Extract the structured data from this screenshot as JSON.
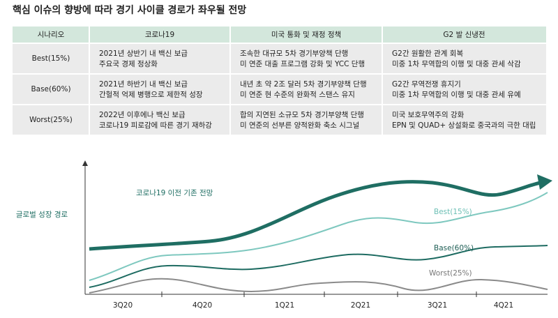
{
  "header": {
    "title": "핵심 이슈의 향방에 따라 경기 사이클 경로가 좌우될 전망"
  },
  "table": {
    "headers": [
      "시나리오",
      "코로나19",
      "미국 통화 및 재정 정책",
      "G2 발 신냉전"
    ],
    "rows": [
      [
        "Best(15%)",
        [
          "2021년 상반기 내 백신 보급",
          "주요국 경제 정상화"
        ],
        [
          "조속한 대규모 5차 경기부양책 단행",
          "미 연준 대출 프로그램 강화 및 YCC 단행"
        ],
        [
          "G2간 원활한 관계 회복",
          "미중 1차 무역합의 이행 및 대중 관세 삭감"
        ]
      ],
      [
        "Base(60%)",
        [
          "2021년 하반기 내 백신 보급",
          "간헐적 억제 병행으로 제한적 성장"
        ],
        [
          "내년 초 약 2조 달러 5차 경기부양책 단행",
          "미 연준 현 수준의 완화적 스탠스 유지"
        ],
        [
          "G2간 무역전쟁 휴지기",
          "미중 1차 무역합의 이행 및 대중 관세 유예"
        ]
      ],
      [
        "Worst(25%)",
        [
          "2022년 이후에나 백신 보급",
          "코로나19 피로감에 따른 경기 재하강"
        ],
        [
          "합의 지연된 소규모 5차 경기부양책 단행",
          "미 연준의 선부른 양적완화 축소 시그널"
        ],
        [
          "미국 보호무역주의 강화",
          "EPN 및 QUAD+ 상설화로 중국과의 극한 대립"
        ]
      ]
    ]
  },
  "diagram": {
    "y_axis_label": "글로벌 성장 경로",
    "categories": [
      "3Q20",
      "4Q20",
      "1Q21",
      "2Q21",
      "3Q21",
      "4Q21"
    ],
    "pre_covid_label": "코로나19 이전 기존 전망",
    "best_label": "Best(15%)",
    "base_label": "Base(60%)",
    "worst_label": "Worst(25%)"
  }
}
